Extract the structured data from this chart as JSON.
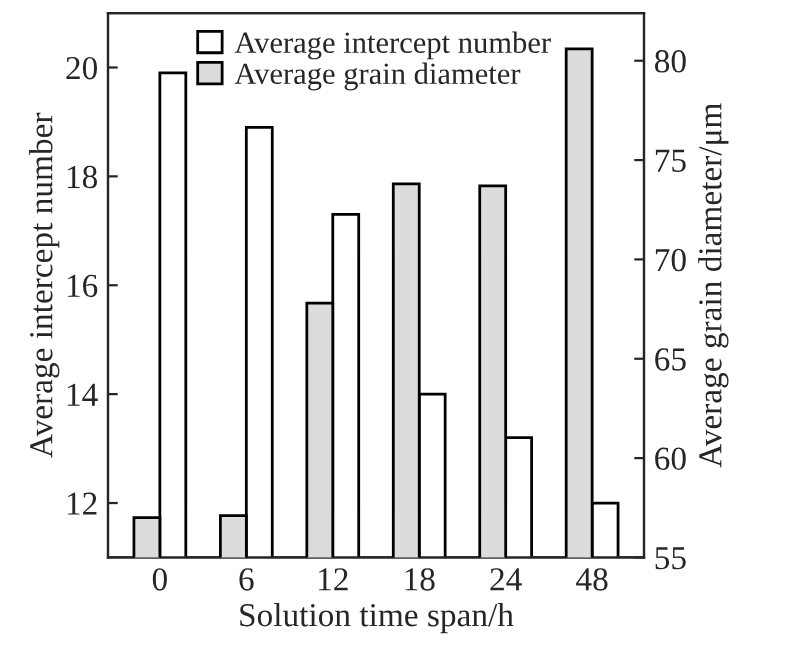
{
  "chart_data": {
    "type": "bar",
    "xlabel": "Solution time span/h",
    "ylabel": "Average intercept number",
    "y2label": "Average grain diameter/μm",
    "categories": [
      "0",
      "6",
      "12",
      "18",
      "24",
      "48"
    ],
    "series": [
      {
        "name": "Average intercept number",
        "color": "#ffffff",
        "values": [
          19.9,
          18.9,
          17.3,
          14.0,
          13.2,
          12.0
        ]
      },
      {
        "name": "Average grain diameter",
        "color": "#dcdcdc",
        "axis": "y2",
        "values": [
          57.0,
          57.1,
          67.8,
          73.8,
          73.7,
          80.6
        ]
      }
    ],
    "ylim": [
      11,
      21
    ],
    "yticks": [
      12,
      14,
      16,
      18,
      20
    ],
    "y2lim": [
      55,
      82.4
    ],
    "y2ticks": [
      55,
      60,
      65,
      70,
      75,
      80
    ],
    "legend": "top",
    "grid": false
  }
}
